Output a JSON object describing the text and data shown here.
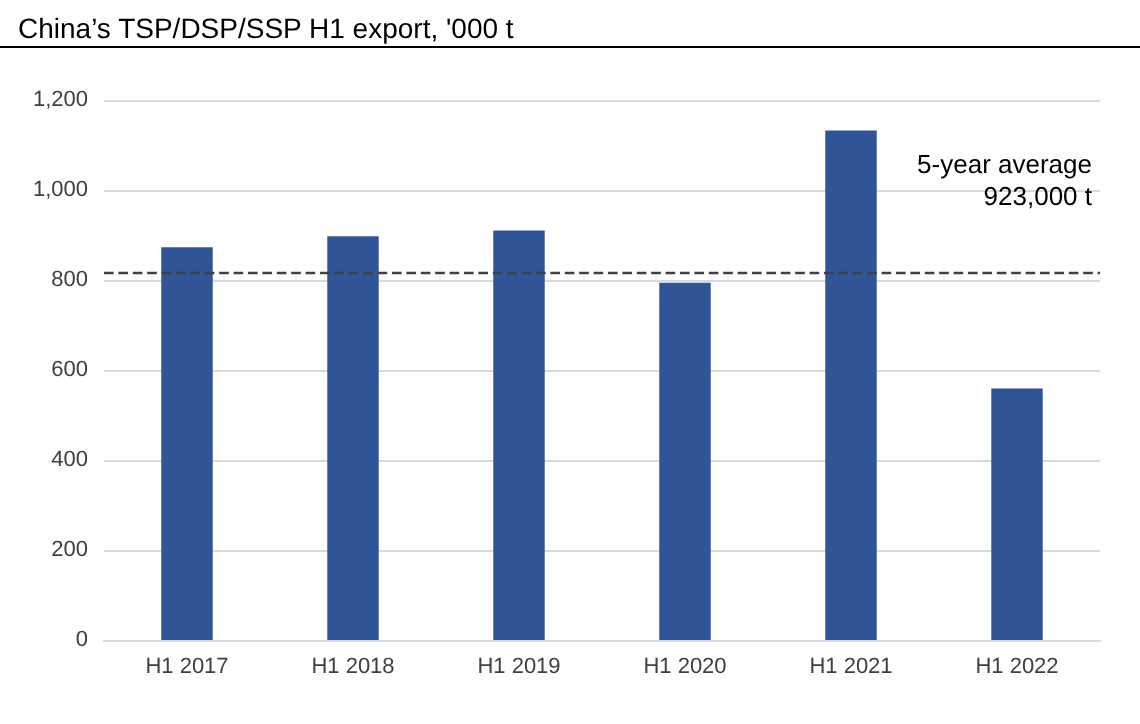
{
  "chart_data": {
    "type": "bar",
    "title": "China’s TSP/DSP/SSP H1 export, '000 t",
    "categories": [
      "H1 2017",
      "H1 2018",
      "H1 2019",
      "H1 2020",
      "H1 2021",
      "H1 2022"
    ],
    "values": [
      873,
      897,
      910,
      794,
      1132,
      559
    ],
    "color": "#2f5597",
    "ylim": [
      0,
      1200
    ],
    "yticks": [
      0,
      {
        "value": 200,
        "label": "200"
      },
      {
        "value": 400,
        "label": "400"
      },
      {
        "value": 600,
        "label": "600"
      },
      {
        "value": 800,
        "label": "800"
      },
      {
        "value": 1000,
        "label": "1,000"
      },
      {
        "value": 1200,
        "label": "1,200"
      }
    ],
    "grid": "y",
    "ref_lines": [
      {
        "axis": "y",
        "value": 817,
        "label": "5-year average\n923,000 t",
        "color": "#404040",
        "line_style": "dashed"
      }
    ]
  }
}
